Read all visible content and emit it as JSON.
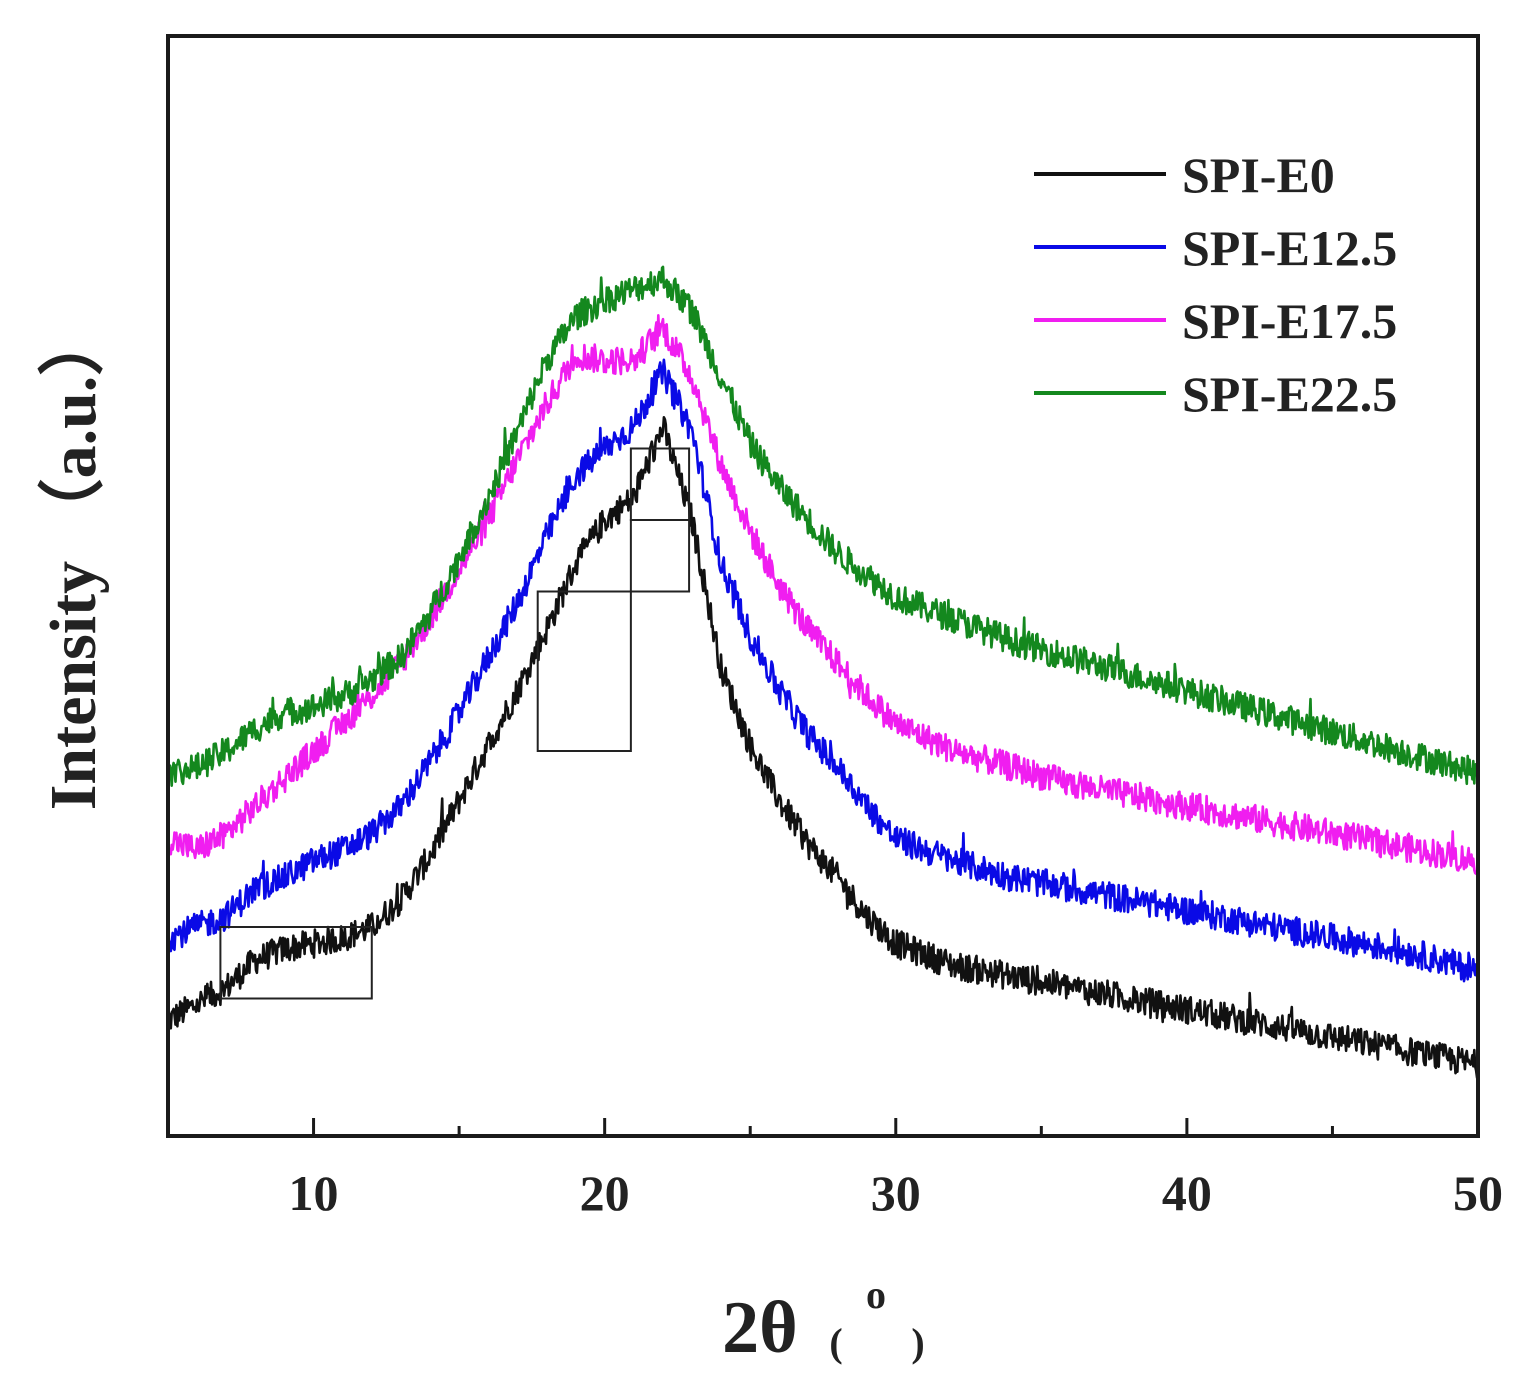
{
  "chart_data": {
    "type": "line",
    "title": "",
    "xlabel_main": "2θ",
    "xlabel_unit_open": "(",
    "xlabel_unit_degree": "o",
    "xlabel_unit_close": ")",
    "ylabel": "Intensity （a.u.）",
    "xlim": [
      5,
      50
    ],
    "ylim": [
      0,
      100
    ],
    "xticks": [
      10,
      20,
      30,
      40,
      50
    ],
    "xtick_labels": [
      "10",
      "20",
      "30",
      "40",
      "50"
    ],
    "minor_xticks": [
      15,
      25,
      35,
      45
    ],
    "show_yticks": false,
    "legend_position": "top-right",
    "series": [
      {
        "name": "SPI-E0",
        "color": "#111111",
        "x": [
          5,
          6,
          7,
          8,
          9,
          10,
          11,
          12,
          13,
          14,
          15,
          16,
          17,
          18,
          19,
          20,
          21,
          22,
          23,
          24,
          25,
          26,
          27,
          28,
          29,
          30,
          32,
          34,
          36,
          38,
          40,
          42,
          44,
          46,
          48,
          50
        ],
        "y": [
          10.5,
          12,
          13.5,
          16,
          17,
          17.5,
          18,
          19,
          21.5,
          25.5,
          30.5,
          35.5,
          40.5,
          46,
          52,
          56,
          58,
          64.5,
          56,
          42.5,
          35.5,
          30.5,
          26.5,
          23.5,
          20,
          17.5,
          15.5,
          14.5,
          13.5,
          12.5,
          11.5,
          10.5,
          9.5,
          8.5,
          7.5,
          6.5
        ]
      },
      {
        "name": "SPI-E12.5",
        "color": "#0a0ae6",
        "x": [
          5,
          6,
          7,
          8,
          9,
          10,
          11,
          12,
          13,
          14,
          15,
          16,
          17,
          18,
          19,
          20,
          21,
          22,
          23,
          24,
          25,
          26,
          27,
          28,
          29,
          30,
          32,
          34,
          36,
          38,
          40,
          42,
          44,
          46,
          48,
          50
        ],
        "y": [
          18,
          19,
          20,
          22.5,
          23.5,
          25,
          26,
          27.5,
          30,
          34,
          38.5,
          43.5,
          48.5,
          54.5,
          60,
          62.5,
          64.5,
          69.5,
          64,
          52,
          45.5,
          40.5,
          36.5,
          33.5,
          30,
          27,
          25,
          23.5,
          22.5,
          21.5,
          20.5,
          19.5,
          18.5,
          17.5,
          16.5,
          15
        ]
      },
      {
        "name": "SPI-E17.5",
        "color": "#f01ef0",
        "x": [
          5,
          6,
          7,
          8,
          9,
          10,
          11,
          12,
          13,
          14,
          15,
          16,
          17,
          18,
          19,
          20,
          21,
          22,
          23,
          24,
          25,
          26,
          27,
          28,
          29,
          30,
          32,
          34,
          36,
          38,
          40,
          42,
          44,
          46,
          48,
          50
        ],
        "y": [
          27,
          26,
          27.5,
          30,
          32.5,
          35,
          37.5,
          40,
          43,
          47,
          51.5,
          56,
          61.5,
          66.5,
          71,
          70.5,
          70.5,
          73.5,
          69,
          61,
          55,
          50,
          46,
          43,
          40,
          37.5,
          35,
          33.5,
          32,
          31,
          30,
          29,
          28,
          27,
          26,
          25
        ]
      },
      {
        "name": "SPI-E22.5",
        "color": "#14881e",
        "x": [
          5,
          6,
          7,
          8,
          9,
          10,
          11,
          12,
          13,
          14,
          15,
          16,
          17,
          18,
          19,
          20,
          21,
          22,
          23,
          24,
          25,
          26,
          27,
          28,
          29,
          30,
          32,
          34,
          36,
          38,
          40,
          42,
          44,
          46,
          48,
          50
        ],
        "y": [
          33,
          33.5,
          35,
          37,
          38.5,
          39,
          40,
          41.5,
          43.5,
          47.5,
          52.5,
          58,
          64,
          70.5,
          74.5,
          76,
          77,
          78,
          75,
          69,
          63,
          59,
          56,
          53,
          51,
          49,
          47,
          45,
          43.5,
          42,
          40.5,
          39,
          37.5,
          36,
          34.5,
          33
        ]
      }
    ],
    "annotations": [
      {
        "type": "box",
        "x": [
          6.8,
          12
        ],
        "y": [
          12.5,
          19
        ]
      },
      {
        "type": "box",
        "x": [
          17.7,
          20.9
        ],
        "y": [
          35,
          49.5
        ]
      },
      {
        "type": "box",
        "x": [
          20.9,
          22.9
        ],
        "y": [
          49.5,
          56
        ]
      },
      {
        "type": "box",
        "x": [
          20.9,
          22.9
        ],
        "y": [
          56,
          62.5
        ]
      }
    ]
  }
}
